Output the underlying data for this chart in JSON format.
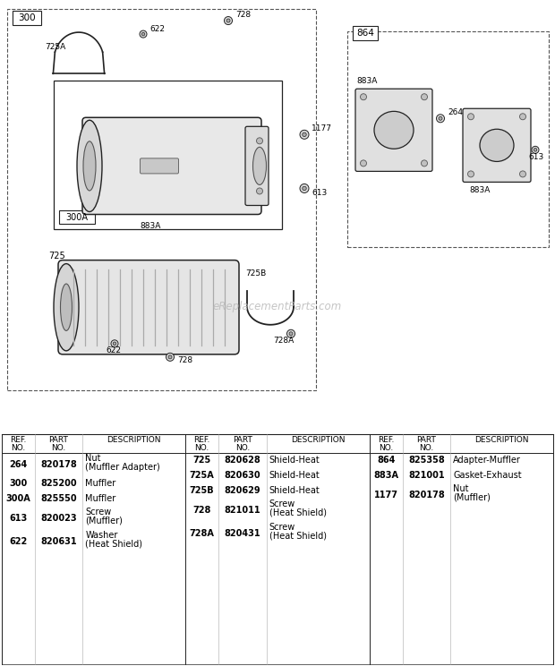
{
  "bg_color": "#ffffff",
  "table_col1": {
    "header": [
      "REF.\nNO.",
      "PART\nNO.",
      "DESCRIPTION"
    ],
    "rows": [
      [
        "264",
        "820178",
        "Nut\n(Muffler Adapter)"
      ],
      [
        "300",
        "825200",
        "Muffler"
      ],
      [
        "300A",
        "825550",
        "Muffler"
      ],
      [
        "613",
        "820023",
        "Screw\n(Muffler)"
      ],
      [
        "622",
        "820631",
        "Washer\n(Heat Shield)"
      ]
    ]
  },
  "table_col2": {
    "header": [
      "REF.\nNO.",
      "PART\nNO.",
      "DESCRIPTION"
    ],
    "rows": [
      [
        "725",
        "820628",
        "Shield-Heat"
      ],
      [
        "725A",
        "820630",
        "Shield-Heat"
      ],
      [
        "725B",
        "820629",
        "Shield-Heat"
      ],
      [
        "728",
        "821011",
        "Screw\n(Heat Shield)"
      ],
      [
        "728A",
        "820431",
        "Screw\n(Heat Shield)"
      ]
    ]
  },
  "table_col3": {
    "header": [
      "REF.\nNO.",
      "PART\nNO.",
      "DESCRIPTION"
    ],
    "rows": [
      [
        "864",
        "825358",
        "Adapter-Muffler"
      ],
      [
        "883A",
        "821001",
        "Gasket-Exhaust"
      ],
      [
        "1177",
        "820178",
        "Nut\n(Muffler)"
      ]
    ]
  },
  "watermark": "eReplacementParts.com"
}
